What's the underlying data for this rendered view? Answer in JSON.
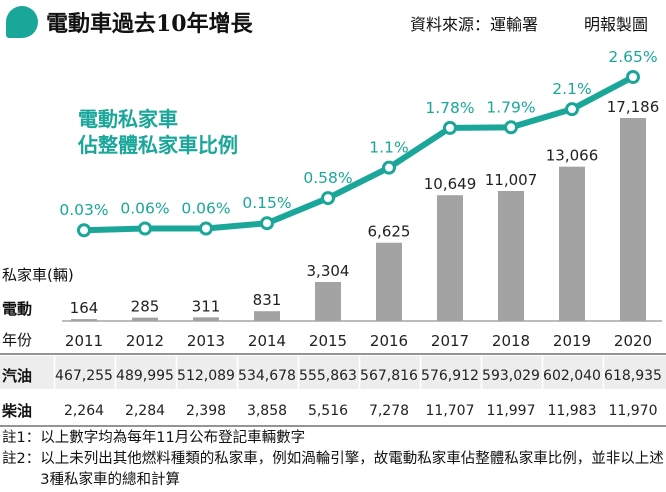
{
  "header": {
    "title": "電動車過去10年增長",
    "source": "資料來源：運輸署",
    "credit": "明報製圖"
  },
  "legend": {
    "line1": "電動私家車",
    "line2": "佔整體私家車比例"
  },
  "labels": {
    "unit": "私家車(輛)",
    "electric": "電動",
    "year": "年份",
    "petrol": "汽油",
    "diesel": "柴油"
  },
  "colors": {
    "accent": "#1aa79a",
    "bar": "#a3a3a3",
    "line": "#1aa79a"
  },
  "chart_data": {
    "type": "bar",
    "categories": [
      "2011",
      "2012",
      "2013",
      "2014",
      "2015",
      "2016",
      "2017",
      "2018",
      "2019",
      "2020"
    ],
    "series": [
      {
        "name": "電動",
        "type": "bar",
        "values": [
          164,
          285,
          311,
          831,
          3304,
          6625,
          10649,
          11007,
          13066,
          17186
        ],
        "value_labels": [
          "164",
          "285",
          "311",
          "831",
          "3,304",
          "6,625",
          "10,649",
          "11,007",
          "13,066",
          "17,186"
        ]
      },
      {
        "name": "電動私家車 佔整體私家車比例",
        "type": "line",
        "values": [
          0.03,
          0.06,
          0.06,
          0.15,
          0.58,
          1.1,
          1.78,
          1.79,
          2.1,
          2.65
        ],
        "value_labels": [
          "0.03%",
          "0.06%",
          "0.06%",
          "0.15%",
          "0.58%",
          "1.1%",
          "1.78%",
          "1.79%",
          "2.1%",
          "2.65%"
        ]
      }
    ],
    "table": {
      "汽油": [
        "467,255",
        "489,995",
        "512,089",
        "534,678",
        "555,863",
        "567,816",
        "576,912",
        "593,029",
        "602,040",
        "618,935"
      ],
      "柴油": [
        "2,264",
        "2,284",
        "2,398",
        "3,858",
        "5,516",
        "7,278",
        "11,707",
        "11,997",
        "11,983",
        "11,970"
      ]
    },
    "ylabel": "私家車(輛)",
    "xlabel": "年份",
    "grid": false
  },
  "notes": [
    {
      "marker": "註1：",
      "text": "以上數字均為每年11月公布登記車輛數字"
    },
    {
      "marker": "註2：",
      "text": "以上未列出其他燃料種類的私家車，例如渦輪引擎，故電動私家車佔整體私家車比例，並非以上述3種私家車的總和計算"
    }
  ]
}
